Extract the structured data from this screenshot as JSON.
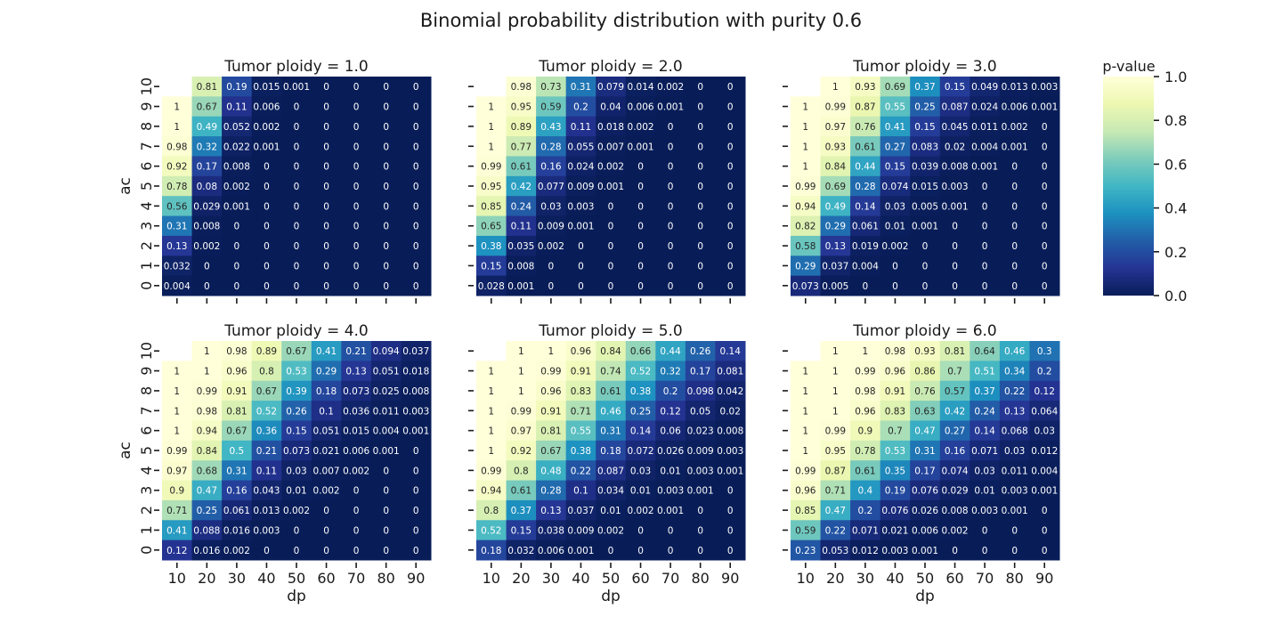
{
  "chart_data": {
    "type": "heatmap",
    "title": "Binomial probability distribution with purity 0.6",
    "xlabel": "dp",
    "ylabel": "ac",
    "x": [
      "10",
      "20",
      "30",
      "40",
      "50",
      "60",
      "70",
      "80",
      "90"
    ],
    "y": [
      "10",
      "9",
      "8",
      "7",
      "6",
      "5",
      "4",
      "3",
      "2",
      "1",
      "0"
    ],
    "colorbar": {
      "label": "p-value",
      "range": [
        0.0,
        1.0
      ],
      "ticks": [
        "0.0",
        "0.2",
        "0.4",
        "0.6",
        "0.8",
        "1.0"
      ],
      "colors": [
        "#081d58",
        "#253494",
        "#225ea8",
        "#1d91c0",
        "#41b6c4",
        "#7fcdbb",
        "#c7e9b4",
        "#edf8b1",
        "#ffffd9"
      ]
    },
    "panels": [
      {
        "title": "Tumor ploidy = 1.0",
        "values": [
          [
            null,
            0.81,
            0.19,
            0.015,
            0.001,
            0,
            0,
            0,
            0
          ],
          [
            1,
            0.67,
            0.11,
            0.006,
            0,
            0,
            0,
            0,
            0
          ],
          [
            1,
            0.49,
            0.052,
            0.002,
            0,
            0,
            0,
            0,
            0
          ],
          [
            0.98,
            0.32,
            0.022,
            0.001,
            0,
            0,
            0,
            0,
            0
          ],
          [
            0.92,
            0.17,
            0.008,
            0,
            0,
            0,
            0,
            0,
            0
          ],
          [
            0.78,
            0.08,
            0.002,
            0,
            0,
            0,
            0,
            0,
            0
          ],
          [
            0.56,
            0.029,
            0.001,
            0,
            0,
            0,
            0,
            0,
            0
          ],
          [
            0.31,
            0.008,
            0,
            0,
            0,
            0,
            0,
            0,
            0
          ],
          [
            0.13,
            0.002,
            0,
            0,
            0,
            0,
            0,
            0,
            0
          ],
          [
            0.032,
            0,
            0,
            0,
            0,
            0,
            0,
            0,
            0
          ],
          [
            0.004,
            0,
            0,
            0,
            0,
            0,
            0,
            0,
            0
          ]
        ]
      },
      {
        "title": "Tumor ploidy = 2.0",
        "values": [
          [
            null,
            0.98,
            0.73,
            0.31,
            0.079,
            0.014,
            0.002,
            0,
            0
          ],
          [
            1,
            0.95,
            0.59,
            0.2,
            0.04,
            0.006,
            0.001,
            0,
            0
          ],
          [
            1,
            0.89,
            0.43,
            0.11,
            0.018,
            0.002,
            0,
            0,
            0
          ],
          [
            1,
            0.77,
            0.28,
            0.055,
            0.007,
            0.001,
            0,
            0,
            0
          ],
          [
            0.99,
            0.61,
            0.16,
            0.024,
            0.002,
            0,
            0,
            0,
            0
          ],
          [
            0.95,
            0.42,
            0.077,
            0.009,
            0.001,
            0,
            0,
            0,
            0
          ],
          [
            0.85,
            0.24,
            0.03,
            0.003,
            0,
            0,
            0,
            0,
            0
          ],
          [
            0.65,
            0.11,
            0.009,
            0.001,
            0,
            0,
            0,
            0,
            0
          ],
          [
            0.38,
            0.035,
            0.002,
            0,
            0,
            0,
            0,
            0,
            0
          ],
          [
            0.15,
            0.008,
            0,
            0,
            0,
            0,
            0,
            0,
            0
          ],
          [
            0.028,
            0.001,
            0,
            0,
            0,
            0,
            0,
            0,
            0
          ]
        ]
      },
      {
        "title": "Tumor ploidy = 3.0",
        "values": [
          [
            null,
            1,
            0.93,
            0.69,
            0.37,
            0.15,
            0.049,
            0.013,
            0.003
          ],
          [
            1,
            0.99,
            0.87,
            0.55,
            0.25,
            0.087,
            0.024,
            0.006,
            0.001
          ],
          [
            1,
            0.97,
            0.76,
            0.41,
            0.15,
            0.045,
            0.011,
            0.002,
            0
          ],
          [
            1,
            0.93,
            0.61,
            0.27,
            0.083,
            0.02,
            0.004,
            0.001,
            0
          ],
          [
            1,
            0.84,
            0.44,
            0.15,
            0.039,
            0.008,
            0.001,
            0,
            0
          ],
          [
            0.99,
            0.69,
            0.28,
            0.074,
            0.015,
            0.003,
            0,
            0,
            0
          ],
          [
            0.94,
            0.49,
            0.14,
            0.03,
            0.005,
            0.001,
            0,
            0,
            0
          ],
          [
            0.82,
            0.29,
            0.061,
            0.01,
            0.001,
            0,
            0,
            0,
            0
          ],
          [
            0.58,
            0.13,
            0.019,
            0.002,
            0,
            0,
            0,
            0,
            0
          ],
          [
            0.29,
            0.037,
            0.004,
            0,
            0,
            0,
            0,
            0,
            0
          ],
          [
            0.073,
            0.005,
            0,
            0,
            0,
            0,
            0,
            0,
            0
          ]
        ]
      },
      {
        "title": "Tumor ploidy = 4.0",
        "values": [
          [
            null,
            1,
            0.98,
            0.89,
            0.67,
            0.41,
            0.21,
            0.094,
            0.037
          ],
          [
            1,
            1,
            0.96,
            0.8,
            0.53,
            0.29,
            0.13,
            0.051,
            0.018
          ],
          [
            1,
            0.99,
            0.91,
            0.67,
            0.39,
            0.18,
            0.073,
            0.025,
            0.008
          ],
          [
            1,
            0.98,
            0.81,
            0.52,
            0.26,
            0.1,
            0.036,
            0.011,
            0.003
          ],
          [
            1,
            0.94,
            0.67,
            0.36,
            0.15,
            0.051,
            0.015,
            0.004,
            0.001
          ],
          [
            0.99,
            0.84,
            0.5,
            0.21,
            0.073,
            0.021,
            0.006,
            0.001,
            0
          ],
          [
            0.97,
            0.68,
            0.31,
            0.11,
            0.03,
            0.007,
            0.002,
            0,
            0
          ],
          [
            0.9,
            0.47,
            0.16,
            0.043,
            0.01,
            0.002,
            0,
            0,
            0
          ],
          [
            0.71,
            0.25,
            0.061,
            0.013,
            0.002,
            0,
            0,
            0,
            0
          ],
          [
            0.41,
            0.088,
            0.016,
            0.003,
            0,
            0,
            0,
            0,
            0
          ],
          [
            0.12,
            0.016,
            0.002,
            0,
            0,
            0,
            0,
            0,
            0
          ]
        ]
      },
      {
        "title": "Tumor ploidy = 5.0",
        "values": [
          [
            null,
            1,
            1,
            0.96,
            0.84,
            0.66,
            0.44,
            0.26,
            0.14
          ],
          [
            1,
            1,
            0.99,
            0.91,
            0.74,
            0.52,
            0.32,
            0.17,
            0.081
          ],
          [
            1,
            1,
            0.96,
            0.83,
            0.61,
            0.38,
            0.2,
            0.098,
            0.042
          ],
          [
            1,
            0.99,
            0.91,
            0.71,
            0.46,
            0.25,
            0.12,
            0.05,
            0.02
          ],
          [
            1,
            0.97,
            0.81,
            0.55,
            0.31,
            0.14,
            0.06,
            0.023,
            0.008
          ],
          [
            1,
            0.92,
            0.67,
            0.38,
            0.18,
            0.072,
            0.026,
            0.009,
            0.003
          ],
          [
            0.99,
            0.8,
            0.48,
            0.22,
            0.087,
            0.03,
            0.01,
            0.003,
            0.001
          ],
          [
            0.94,
            0.61,
            0.28,
            0.1,
            0.034,
            0.01,
            0.003,
            0.001,
            0
          ],
          [
            0.8,
            0.37,
            0.13,
            0.037,
            0.01,
            0.002,
            0.001,
            0,
            0
          ],
          [
            0.52,
            0.15,
            0.038,
            0.009,
            0.002,
            0,
            0,
            0,
            0
          ],
          [
            0.18,
            0.032,
            0.006,
            0.001,
            0,
            0,
            0,
            0,
            0
          ]
        ]
      },
      {
        "title": "Tumor ploidy = 6.0",
        "values": [
          [
            null,
            1,
            1,
            0.98,
            0.93,
            0.81,
            0.64,
            0.46,
            0.3
          ],
          [
            1,
            1,
            0.99,
            0.96,
            0.86,
            0.7,
            0.51,
            0.34,
            0.2
          ],
          [
            1,
            1,
            0.98,
            0.91,
            0.76,
            0.57,
            0.37,
            0.22,
            0.12
          ],
          [
            1,
            1,
            0.96,
            0.83,
            0.63,
            0.42,
            0.24,
            0.13,
            0.064
          ],
          [
            1,
            0.99,
            0.9,
            0.7,
            0.47,
            0.27,
            0.14,
            0.068,
            0.03
          ],
          [
            1,
            0.95,
            0.78,
            0.53,
            0.31,
            0.16,
            0.071,
            0.03,
            0.012
          ],
          [
            0.99,
            0.87,
            0.61,
            0.35,
            0.17,
            0.074,
            0.03,
            0.011,
            0.004
          ],
          [
            0.96,
            0.71,
            0.4,
            0.19,
            0.076,
            0.029,
            0.01,
            0.003,
            0.001
          ],
          [
            0.85,
            0.47,
            0.2,
            0.076,
            0.026,
            0.008,
            0.003,
            0.001,
            0
          ],
          [
            0.59,
            0.22,
            0.071,
            0.021,
            0.006,
            0.002,
            0,
            0,
            0
          ],
          [
            0.23,
            0.053,
            0.012,
            0.003,
            0.001,
            0,
            0,
            0,
            0
          ]
        ]
      }
    ]
  }
}
